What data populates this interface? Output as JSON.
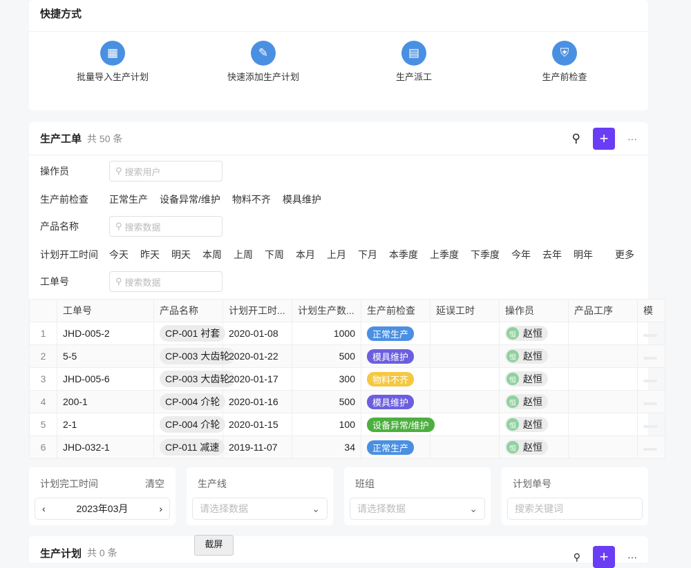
{
  "shortcuts": {
    "title": "快捷方式",
    "items": [
      {
        "label": "批量导入生产计划",
        "icon": "table-grid-icon"
      },
      {
        "label": "快速添加生产计划",
        "icon": "pencil-icon"
      },
      {
        "label": "生产派工",
        "icon": "calendar-icon"
      },
      {
        "label": "生产前检查",
        "icon": "shield-icon"
      }
    ]
  },
  "orders": {
    "title": "生产工单",
    "count": "共 50 条",
    "filters": {
      "operator_label": "操作员",
      "operator_placeholder": "搜索用户",
      "check_label": "生产前检查",
      "check_options": [
        "正常生产",
        "设备异常/维护",
        "物料不齐",
        "模具维护"
      ],
      "product_label": "产品名称",
      "product_placeholder": "搜索数据",
      "time_label": "计划开工时间",
      "time_options": [
        "今天",
        "昨天",
        "明天",
        "本周",
        "上周",
        "下周",
        "本月",
        "上月",
        "下月",
        "本季度",
        "上季度",
        "下季度",
        "今年",
        "去年",
        "明年"
      ],
      "more": "更多",
      "order_label": "工单号",
      "order_placeholder": "搜索数据"
    },
    "columns": [
      "",
      "工单号",
      "产品名称",
      "计划开工时...",
      "计划生产数...",
      "生产前检查",
      "延误工时",
      "操作员",
      "产品工序",
      "模"
    ],
    "rows": [
      {
        "idx": "1",
        "no": "JHD-005-2",
        "product": "CP-001 衬套",
        "date": "2020-01-08",
        "qty": "1000",
        "check": "正常生产",
        "color": "#4a90e2",
        "avatar": "恒",
        "operator": "赵恒"
      },
      {
        "idx": "2",
        "no": "5-5",
        "product": "CP-003 大齿轮",
        "date": "2020-01-22",
        "qty": "500",
        "check": "模具维护",
        "color": "#6b5fe0",
        "avatar": "恒",
        "operator": "赵恒"
      },
      {
        "idx": "3",
        "no": "JHD-005-6",
        "product": "CP-003 大齿轮",
        "date": "2020-01-17",
        "qty": "300",
        "check": "物料不齐",
        "color": "#f5c842",
        "avatar": "恒",
        "operator": "赵恒"
      },
      {
        "idx": "4",
        "no": "200-1",
        "product": "CP-004 介轮",
        "date": "2020-01-16",
        "qty": "500",
        "check": "模具维护",
        "color": "#6b5fe0",
        "avatar": "恒",
        "operator": "赵恒"
      },
      {
        "idx": "5",
        "no": "2-1",
        "product": "CP-004 介轮",
        "date": "2020-01-15",
        "qty": "100",
        "check": "设备异常/维护",
        "color": "#4caf3f",
        "avatar": "恒",
        "operator": "赵恒"
      },
      {
        "idx": "6",
        "no": "JHD-032-1",
        "product": "CP-011 减速",
        "date": "2019-11-07",
        "qty": "34",
        "check": "正常生产",
        "color": "#4a90e2",
        "avatar": "恒",
        "operator": "赵恒"
      }
    ]
  },
  "filters2": {
    "finish_label": "计划完工时间",
    "clear": "清空",
    "month": "2023年03月",
    "line_label": "生产线",
    "line_placeholder": "请选择数据",
    "team_label": "班组",
    "team_placeholder": "请选择数据",
    "plan_label": "计划单号",
    "plan_placeholder": "搜索关键词"
  },
  "plan": {
    "title": "生产计划",
    "count": "共 0 条"
  },
  "screenshot_label": "截屏"
}
